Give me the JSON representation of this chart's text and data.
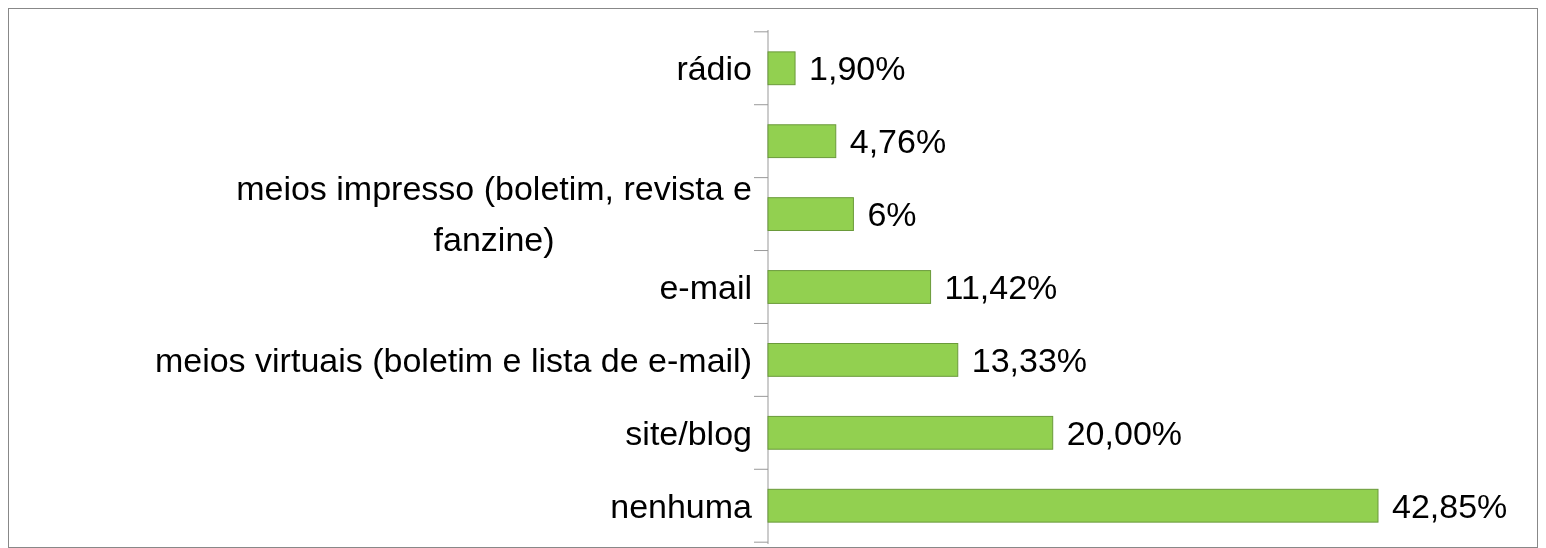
{
  "chart_data": {
    "type": "bar",
    "orientation": "horizontal",
    "categories": [
      "rádio",
      null,
      "meios impresso (boletim, revista e fanzine)",
      "e-mail",
      "meios virtuais (boletim e lista de e-mail)",
      "site/blog",
      "nenhuma"
    ],
    "values": [
      1.9,
      4.76,
      6,
      11.42,
      13.33,
      20.0,
      42.85
    ],
    "value_labels": [
      "1,90%",
      "4,76%",
      "6%",
      "11,42%",
      "13,33%",
      "20,00%",
      "42,85%"
    ],
    "color": "#92d050"
  }
}
